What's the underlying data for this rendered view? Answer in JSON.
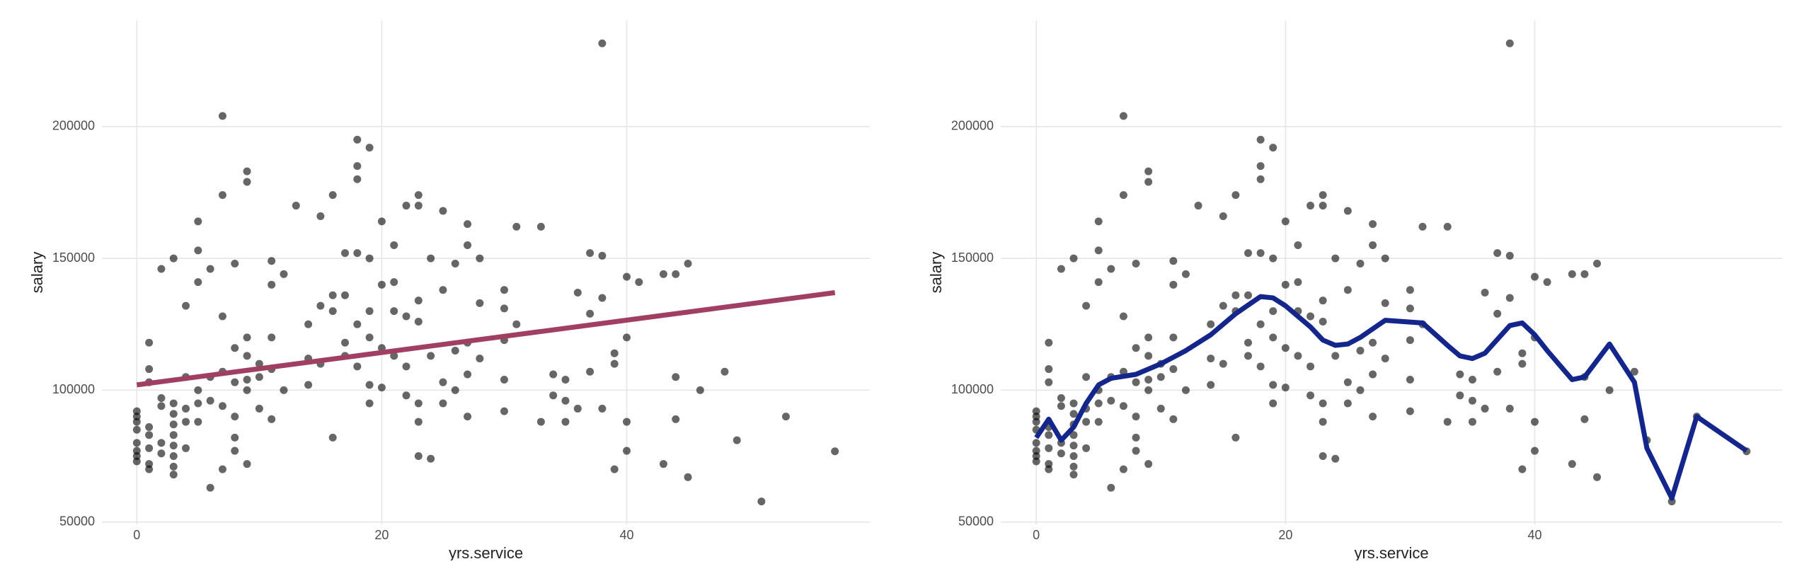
{
  "chart_data": [
    {
      "type": "scatter",
      "xlabel": "yrs.service",
      "ylabel": "salary",
      "xlim": [
        -2.85,
        59.85
      ],
      "ylim": [
        49100,
        240200
      ],
      "xticks": [
        0,
        20,
        40
      ],
      "yticks": [
        50000,
        100000,
        150000,
        200000
      ],
      "grid": true,
      "series": [
        {
          "type": "scatter",
          "color": "#000000",
          "alpha": 0.6,
          "x": [
            0,
            0,
            0,
            0,
            0,
            0,
            0,
            0,
            1,
            1,
            1,
            1,
            1,
            1,
            1,
            1,
            2,
            2,
            2,
            2,
            2,
            3,
            3,
            3,
            3,
            3,
            3,
            3,
            3,
            3,
            4,
            4,
            4,
            4,
            4,
            5,
            5,
            5,
            5,
            5,
            5,
            6,
            6,
            6,
            6,
            7,
            7,
            7,
            7,
            7,
            7,
            8,
            8,
            8,
            8,
            8,
            8,
            9,
            9,
            9,
            9,
            9,
            9,
            9,
            10,
            10,
            10,
            11,
            11,
            11,
            11,
            11,
            12,
            12,
            13,
            14,
            14,
            14,
            15,
            15,
            15,
            16,
            16,
            16,
            16,
            17,
            17,
            17,
            17,
            18,
            18,
            18,
            18,
            18,
            18,
            19,
            19,
            19,
            19,
            19,
            19,
            20,
            20,
            20,
            20,
            21,
            21,
            21,
            21,
            22,
            22,
            22,
            22,
            23,
            23,
            23,
            23,
            23,
            23,
            23,
            24,
            24,
            24,
            25,
            25,
            25,
            25,
            26,
            26,
            26,
            27,
            27,
            27,
            27,
            27,
            28,
            28,
            28,
            30,
            30,
            30,
            30,
            30,
            31,
            31,
            33,
            33,
            34,
            34,
            35,
            35,
            35,
            36,
            36,
            37,
            37,
            37,
            38,
            38,
            38,
            38,
            39,
            39,
            39,
            40,
            40,
            40,
            40,
            41,
            43,
            43,
            44,
            44,
            44,
            45,
            45,
            46,
            48,
            49,
            51,
            53,
            57
          ],
          "values": [
            92000,
            88000,
            85000,
            80000,
            77000,
            73000,
            75000,
            90000,
            118000,
            108000,
            103000,
            86000,
            83000,
            78000,
            72000,
            70000,
            146000,
            97000,
            94000,
            80000,
            76000,
            150000,
            95000,
            91000,
            87000,
            83000,
            79000,
            75000,
            71000,
            68000,
            132000,
            105000,
            93000,
            88000,
            78000,
            164000,
            153000,
            141000,
            100000,
            95000,
            88000,
            146000,
            105000,
            96000,
            63000,
            204000,
            174000,
            128000,
            107000,
            94000,
            70000,
            148000,
            116000,
            103000,
            90000,
            82000,
            77000,
            183000,
            179000,
            120000,
            113000,
            104000,
            100000,
            72000,
            93000,
            105000,
            110000,
            149000,
            140000,
            120000,
            108000,
            89000,
            144000,
            100000,
            170000,
            125000,
            112000,
            102000,
            166000,
            132000,
            110000,
            174000,
            136000,
            130000,
            82000,
            152000,
            136000,
            118000,
            113000,
            195000,
            185000,
            180000,
            152000,
            125000,
            109000,
            192000,
            150000,
            130000,
            120000,
            102000,
            95000,
            164000,
            140000,
            116000,
            101000,
            155000,
            141000,
            130000,
            113000,
            170000,
            128000,
            109000,
            98000,
            174000,
            170000,
            134000,
            126000,
            95000,
            88000,
            75000,
            150000,
            113000,
            74000,
            168000,
            138000,
            103000,
            95000,
            148000,
            115000,
            100000,
            163000,
            155000,
            118000,
            106000,
            90000,
            150000,
            133000,
            112000,
            138000,
            131000,
            119000,
            104000,
            92000,
            162000,
            125000,
            162000,
            88000,
            106000,
            98000,
            104000,
            96000,
            88000,
            137000,
            93000,
            152000,
            129000,
            107000,
            231545,
            151000,
            135000,
            93000,
            114000,
            110000,
            70000,
            143000,
            120000,
            88000,
            77000,
            141000,
            144000,
            72000,
            144000,
            105000,
            89000,
            148000,
            67000,
            100000,
            107000,
            81000,
            57800,
            90000,
            76800
          ]
        },
        {
          "type": "line",
          "color": "#a13f63",
          "x": [
            0,
            57
          ],
          "values": [
            102000,
            137000
          ]
        }
      ]
    },
    {
      "type": "scatter",
      "xlabel": "yrs.service",
      "ylabel": "salary",
      "xlim": [
        -2.85,
        59.85
      ],
      "ylim": [
        49100,
        240200
      ],
      "xticks": [
        0,
        20,
        40
      ],
      "yticks": [
        50000,
        100000,
        150000,
        200000
      ],
      "grid": true,
      "series": [
        {
          "type": "scatter",
          "color": "#000000",
          "alpha": 0.6,
          "x": [
            0,
            0,
            0,
            0,
            0,
            0,
            0,
            0,
            1,
            1,
            1,
            1,
            1,
            1,
            1,
            1,
            2,
            2,
            2,
            2,
            2,
            3,
            3,
            3,
            3,
            3,
            3,
            3,
            3,
            3,
            4,
            4,
            4,
            4,
            4,
            5,
            5,
            5,
            5,
            5,
            5,
            6,
            6,
            6,
            6,
            7,
            7,
            7,
            7,
            7,
            7,
            8,
            8,
            8,
            8,
            8,
            8,
            9,
            9,
            9,
            9,
            9,
            9,
            9,
            10,
            10,
            10,
            11,
            11,
            11,
            11,
            11,
            12,
            12,
            13,
            14,
            14,
            14,
            15,
            15,
            15,
            16,
            16,
            16,
            16,
            17,
            17,
            17,
            17,
            18,
            18,
            18,
            18,
            18,
            18,
            19,
            19,
            19,
            19,
            19,
            19,
            20,
            20,
            20,
            20,
            21,
            21,
            21,
            21,
            22,
            22,
            22,
            22,
            23,
            23,
            23,
            23,
            23,
            23,
            23,
            24,
            24,
            24,
            25,
            25,
            25,
            25,
            26,
            26,
            26,
            27,
            27,
            27,
            27,
            27,
            28,
            28,
            28,
            30,
            30,
            30,
            30,
            30,
            31,
            31,
            33,
            33,
            34,
            34,
            35,
            35,
            35,
            36,
            36,
            37,
            37,
            37,
            38,
            38,
            38,
            38,
            39,
            39,
            39,
            40,
            40,
            40,
            40,
            41,
            43,
            43,
            44,
            44,
            44,
            45,
            45,
            46,
            48,
            49,
            51,
            53,
            57
          ],
          "values": [
            92000,
            88000,
            85000,
            80000,
            77000,
            73000,
            75000,
            90000,
            118000,
            108000,
            103000,
            86000,
            83000,
            78000,
            72000,
            70000,
            146000,
            97000,
            94000,
            80000,
            76000,
            150000,
            95000,
            91000,
            87000,
            83000,
            79000,
            75000,
            71000,
            68000,
            132000,
            105000,
            93000,
            88000,
            78000,
            164000,
            153000,
            141000,
            100000,
            95000,
            88000,
            146000,
            105000,
            96000,
            63000,
            204000,
            174000,
            128000,
            107000,
            94000,
            70000,
            148000,
            116000,
            103000,
            90000,
            82000,
            77000,
            183000,
            179000,
            120000,
            113000,
            104000,
            100000,
            72000,
            93000,
            105000,
            110000,
            149000,
            140000,
            120000,
            108000,
            89000,
            144000,
            100000,
            170000,
            125000,
            112000,
            102000,
            166000,
            132000,
            110000,
            174000,
            136000,
            130000,
            82000,
            152000,
            136000,
            118000,
            113000,
            195000,
            185000,
            180000,
            152000,
            125000,
            109000,
            192000,
            150000,
            130000,
            120000,
            102000,
            95000,
            164000,
            140000,
            116000,
            101000,
            155000,
            141000,
            130000,
            113000,
            170000,
            128000,
            109000,
            98000,
            174000,
            170000,
            134000,
            126000,
            95000,
            88000,
            75000,
            150000,
            113000,
            74000,
            168000,
            138000,
            103000,
            95000,
            148000,
            115000,
            100000,
            163000,
            155000,
            118000,
            106000,
            90000,
            150000,
            133000,
            112000,
            138000,
            131000,
            119000,
            104000,
            92000,
            162000,
            125000,
            162000,
            88000,
            106000,
            98000,
            104000,
            96000,
            88000,
            137000,
            93000,
            152000,
            129000,
            107000,
            231545,
            151000,
            135000,
            93000,
            114000,
            110000,
            70000,
            143000,
            120000,
            88000,
            77000,
            141000,
            144000,
            72000,
            144000,
            105000,
            89000,
            148000,
            67000,
            100000,
            107000,
            81000,
            57800,
            90000,
            76800
          ]
        },
        {
          "type": "line",
          "color": "#14268c",
          "x": [
            0,
            1,
            2,
            3,
            4,
            5,
            6,
            8,
            10,
            12,
            14,
            16,
            18,
            19,
            20,
            22,
            23,
            24,
            25,
            26,
            28,
            31,
            33,
            34,
            35,
            36,
            38,
            39,
            40,
            41,
            43,
            44,
            46,
            48,
            49,
            51,
            53,
            57
          ],
          "values": [
            82000,
            89000,
            81000,
            86000,
            95000,
            102000,
            104500,
            106000,
            110000,
            115000,
            121000,
            129000,
            135500,
            135000,
            132000,
            124000,
            119000,
            117000,
            117500,
            120000,
            126500,
            125500,
            117000,
            113000,
            112000,
            114000,
            124500,
            125500,
            121000,
            115000,
            104000,
            105000,
            117500,
            103000,
            78000,
            59000,
            90000,
            77000
          ]
        }
      ]
    }
  ]
}
